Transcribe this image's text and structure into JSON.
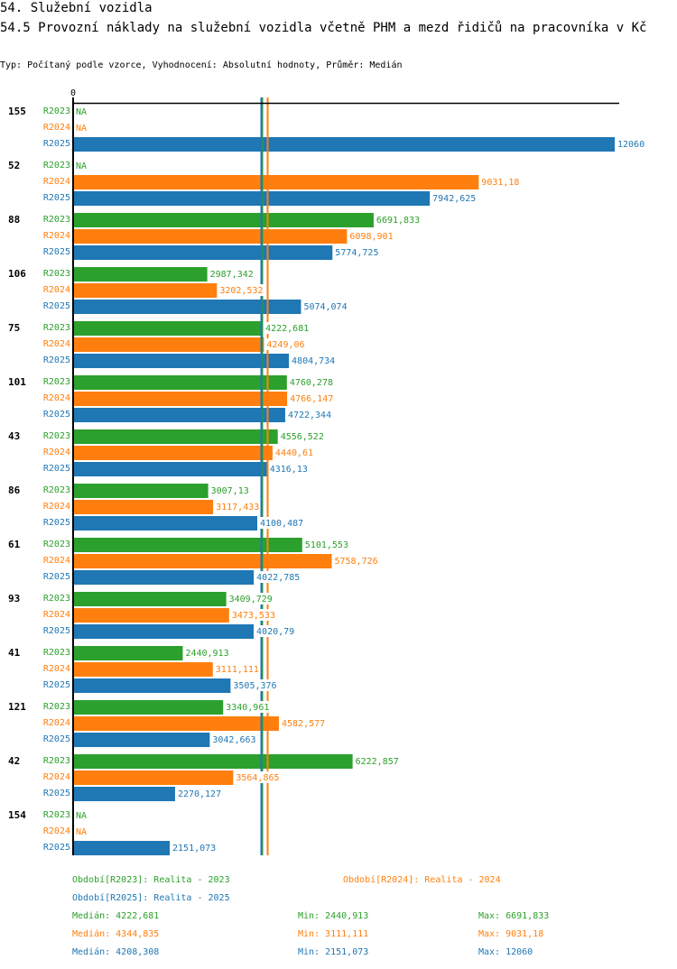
{
  "header": {
    "section_title": "54. Služební vozidla",
    "indicator_title": "54.5 Provozní náklady na služební vozidla včetně PHM a mezd řidičů na pracovníka v Kč",
    "meta": "Typ: Počítaný podle vzorce, Vyhodnocení: Absolutní hodnoty, Průměr: Medián"
  },
  "colors": {
    "R2023": "#2ca02c",
    "R2024": "#ff7f0e",
    "R2025": "#1f77b4",
    "axis": "#000000"
  },
  "chart_data": {
    "type": "bar",
    "orientation": "horizontal",
    "title": "54.5 Provozní náklady na služební vozidla včetně PHM a mezd řidičů na pracovníka v Kč",
    "xlabel": "",
    "ylabel": "",
    "x_tick_labels": [
      "0"
    ],
    "xlim": [
      0,
      12060
    ],
    "grid": false,
    "categories": [
      "155",
      "52",
      "88",
      "106",
      "75",
      "101",
      "43",
      "86",
      "61",
      "93",
      "41",
      "121",
      "42",
      "154"
    ],
    "series": [
      {
        "name": "R2023",
        "values": [
          null,
          null,
          6691.833,
          2987.342,
          4222.681,
          4760.278,
          4556.522,
          3007.13,
          5101.553,
          3409.729,
          2440.913,
          3340.961,
          6222.857,
          null
        ],
        "labels": [
          "NA",
          "NA",
          "6691,833",
          "2987,342",
          "4222,681",
          "4760,278",
          "4556,522",
          "3007,13",
          "5101,553",
          "3409,729",
          "2440,913",
          "3340,961",
          "6222,857",
          "NA"
        ]
      },
      {
        "name": "R2024",
        "values": [
          null,
          9031.18,
          6098.901,
          3202.532,
          4249.06,
          4766.147,
          4440.61,
          3117.433,
          5758.726,
          3473.533,
          3111.111,
          4582.577,
          3564.865,
          null
        ],
        "labels": [
          "NA",
          "9031,18",
          "6098,901",
          "3202,532",
          "4249,06",
          "4766,147",
          "4440,61",
          "3117,433",
          "5758,726",
          "3473,533",
          "3111,111",
          "4582,577",
          "3564,865",
          "NA"
        ]
      },
      {
        "name": "R2025",
        "values": [
          12060,
          7942.625,
          5774.725,
          5074.074,
          4804.734,
          4722.344,
          4316.13,
          4100.487,
          4022.785,
          4020.79,
          3505.376,
          3042.663,
          2270.127,
          2151.073
        ],
        "labels": [
          "12060",
          "7942,625",
          "5774,725",
          "5074,074",
          "4804,734",
          "4722,344",
          "4316,13",
          "4100,487",
          "4022,785",
          "4020,79",
          "3505,376",
          "3042,663",
          "2270,127",
          "2151,073"
        ]
      }
    ],
    "reference_lines": [
      {
        "series": "R2023",
        "type": "median",
        "value": 4222.681
      },
      {
        "series": "R2025",
        "type": "median",
        "value": 4208.308
      },
      {
        "series": "R2024",
        "type": "median",
        "value": 4344.835
      }
    ],
    "legend": {
      "placement": "bottom",
      "periods": [
        {
          "series": "R2023",
          "text": "Období[R2023]: Realita - 2023"
        },
        {
          "series": "R2024",
          "text": "Období[R2024]: Realita - 2024"
        },
        {
          "series": "R2025",
          "text": "Období[R2025]: Realita - 2025"
        }
      ],
      "stats": [
        {
          "series": "R2023",
          "median": "Medián: 4222,681",
          "min": "Min: 2440,913",
          "max": "Max: 6691,833"
        },
        {
          "series": "R2024",
          "median": "Medián: 4344,835",
          "min": "Min: 3111,111",
          "max": "Max: 9031,18"
        },
        {
          "series": "R2025",
          "median": "Medián: 4208,308",
          "min": "Min: 2151,073",
          "max": "Max: 12060"
        }
      ]
    }
  }
}
